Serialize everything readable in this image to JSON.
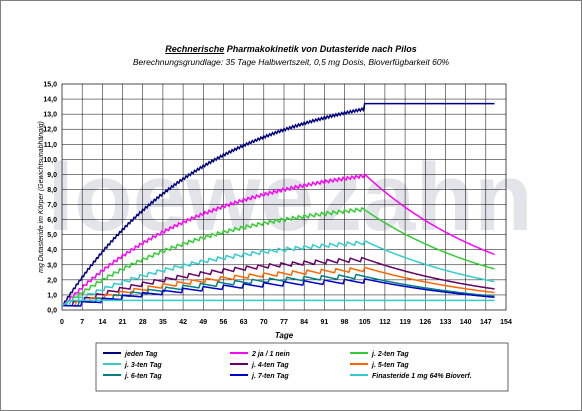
{
  "title_prefix": "Rechnerische",
  "title_rest": " Pharmakokinetik von Dutasteride nach Pilos",
  "subtitle": "Berechnungsgrundlage: 35 Tage Halbwertszeit, 0,5 mg Dosis, Bioverfügbarkeit 60%",
  "watermark_text": "loewezahn",
  "chart_data": {
    "type": "line",
    "xlabel": "Tage",
    "ylabel": "mg Dutasteride im Körper (Gewichtsunabhängig)",
    "xlim": [
      0,
      154
    ],
    "ylim": [
      0,
      15
    ],
    "xticks": [
      0,
      7,
      14,
      21,
      28,
      35,
      42,
      49,
      56,
      63,
      70,
      77,
      84,
      91,
      98,
      105,
      112,
      119,
      126,
      133,
      140,
      147,
      154
    ],
    "yticks": [
      "0,0",
      "1,0",
      "2,0",
      "3,0",
      "4,0",
      "5,0",
      "6,0",
      "7,0",
      "8,0",
      "9,0",
      "10,0",
      "11,0",
      "12,0",
      "13,0",
      "14,0",
      "15,0"
    ],
    "grid": true,
    "legend_position": "bottom",
    "series": [
      {
        "name": "jeden Tag",
        "color": "#000080",
        "interval": 1,
        "dose": 0.3,
        "max_day": 150
      },
      {
        "name": "2 ja / 1 nein",
        "color": "#ff00ff",
        "interval": 1.5,
        "dose": 0.3,
        "max_day": 150
      },
      {
        "name": "j. 2-ten Tag",
        "color": "#33cc33",
        "interval": 2,
        "dose": 0.3,
        "max_day": 150
      },
      {
        "name": "j. 3-ten Tag",
        "color": "#33cccc",
        "interval": 3,
        "dose": 0.3,
        "max_day": 150
      },
      {
        "name": "j. 4-ten Tag",
        "color": "#660066",
        "interval": 4,
        "dose": 0.3,
        "max_day": 150
      },
      {
        "name": "j. 5-ten Tag",
        "color": "#ff6600",
        "interval": 5,
        "dose": 0.3,
        "max_day": 150
      },
      {
        "name": "j. 6-ten Tag",
        "color": "#008080",
        "interval": 6,
        "dose": 0.3,
        "max_day": 150
      },
      {
        "name": "j. 7-ten Tag",
        "color": "#0000cc",
        "interval": 7,
        "dose": 0.3,
        "max_day": 150
      },
      {
        "name": "Finasteride 1 mg 64% Bioverf.",
        "color": "#33cccc",
        "interval": 0,
        "dose": 0.64,
        "max_day": 150
      }
    ]
  }
}
